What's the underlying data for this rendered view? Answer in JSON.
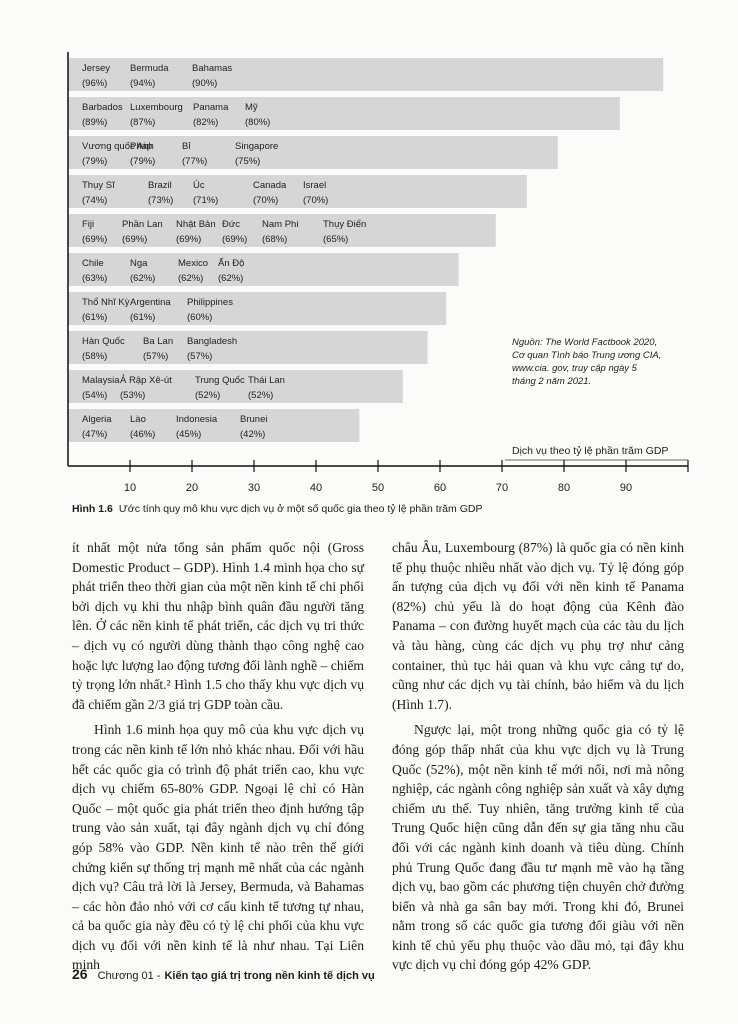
{
  "figure": {
    "xlim": [
      0,
      100
    ],
    "xticks": [
      10,
      20,
      30,
      40,
      50,
      60,
      70,
      80,
      90
    ],
    "bar_color": "#d6d6d6",
    "rows": [
      {
        "value": 96,
        "countries": [
          {
            "name": "Jersey",
            "pct": "(96%)"
          },
          {
            "name": "Bermuda",
            "pct": "(94%)"
          },
          {
            "name": "Bahamas",
            "pct": "(90%)"
          }
        ]
      },
      {
        "value": 89,
        "countries": [
          {
            "name": "Barbados",
            "pct": "(89%)"
          },
          {
            "name": "Luxembourg",
            "pct": "(87%)"
          },
          {
            "name": "Panama",
            "pct": "(82%)"
          },
          {
            "name": "Mỹ",
            "pct": "(80%)"
          }
        ]
      },
      {
        "value": 79,
        "countries": [
          {
            "name": "Vương quốc Anh",
            "pct": "(79%)"
          },
          {
            "name": "Pháp",
            "pct": "(79%)"
          },
          {
            "name": "Bỉ",
            "pct": "(77%)"
          },
          {
            "name": "Singapore",
            "pct": "(75%)"
          }
        ]
      },
      {
        "value": 74,
        "countries": [
          {
            "name": "Thụy Sĩ",
            "pct": "(74%)"
          },
          {
            "name": "Brazil",
            "pct": "(73%)"
          },
          {
            "name": "Úc",
            "pct": "(71%)"
          },
          {
            "name": "Canada",
            "pct": "(70%)"
          },
          {
            "name": "Israel",
            "pct": "(70%)"
          }
        ]
      },
      {
        "value": 69,
        "countries": [
          {
            "name": "Fiji",
            "pct": "(69%)"
          },
          {
            "name": "Phần Lan",
            "pct": "(69%)"
          },
          {
            "name": "Nhật Bản",
            "pct": "(69%)"
          },
          {
            "name": "Đức",
            "pct": "(69%)"
          },
          {
            "name": "Nam Phi",
            "pct": "(68%)"
          },
          {
            "name": "Thụy Điển",
            "pct": "(65%)"
          }
        ]
      },
      {
        "value": 63,
        "countries": [
          {
            "name": "Chile",
            "pct": "(63%)"
          },
          {
            "name": "Nga",
            "pct": "(62%)"
          },
          {
            "name": "Mexico",
            "pct": "(62%)"
          },
          {
            "name": "Ấn Độ",
            "pct": "(62%)"
          }
        ]
      },
      {
        "value": 61,
        "countries": [
          {
            "name": "Thổ Nhĩ Kỳ",
            "pct": "(61%)"
          },
          {
            "name": "Argentina",
            "pct": "(61%)"
          },
          {
            "name": "Philippines",
            "pct": "(60%)"
          }
        ]
      },
      {
        "value": 58,
        "countries": [
          {
            "name": "Hàn Quốc",
            "pct": "(58%)"
          },
          {
            "name": "Ba Lan",
            "pct": "(57%)"
          },
          {
            "name": "Bangladesh",
            "pct": "(57%)"
          }
        ]
      },
      {
        "value": 54,
        "countries": [
          {
            "name": "Malaysia",
            "pct": "(54%)"
          },
          {
            "name": "Ả Rập Xê-út",
            "pct": "(53%)"
          },
          {
            "name": "Trung Quốc",
            "pct": "(52%)"
          },
          {
            "name": "Thái Lan",
            "pct": "(52%)"
          }
        ]
      },
      {
        "value": 47,
        "countries": [
          {
            "name": "Algeria",
            "pct": "(47%)"
          },
          {
            "name": "Lào",
            "pct": "(46%)"
          },
          {
            "name": "Indonesia",
            "pct": "(45%)"
          },
          {
            "name": "Brunei",
            "pct": "(42%)"
          }
        ]
      }
    ],
    "source": [
      "Nguồn: The World Factbook 2020,",
      "Cơ quan Tình báo Trung ương CIA,",
      "www.cia. gov, truy cập ngày 5",
      "tháng 2 năm 2021."
    ],
    "axis_title": "Dịch vụ theo tỷ lệ phần trăm GDP",
    "caption": {
      "label": "Hình 1.6",
      "text": "Ước tính quy mô khu vực dịch vụ ở một số quốc gia theo tỷ lệ phần trăm GDP"
    }
  },
  "body": {
    "left": [
      "ít nhất một nửa tổng sản phẩm quốc nội (Gross Domestic Product – GDP). Hình 1.4 minh họa cho sự phát triển theo thời gian của một nền kinh tế chi phối bởi dịch vụ khi thu nhập bình quân đầu người tăng lên. Ở các nền kinh tế phát triển, các dịch vụ tri thức – dịch vụ có người dùng thành thạo công nghệ cao hoặc lực lượng lao động tương đối lành nghề – chiếm tỷ trọng lớn nhất.² Hình 1.5 cho thấy khu vực dịch vụ đã chiếm gần 2/3 giá trị GDP toàn cầu.",
      "Hình 1.6 minh họa quy mô của khu vực dịch vụ trong các nền kinh tế lớn nhỏ khác nhau. Đối với hầu hết các quốc gia có trình độ phát triển cao, khu vực dịch vụ chiếm 65-80% GDP. Ngoại lệ chỉ có Hàn Quốc – một quốc gia phát triển theo định hướng tập trung vào sản xuất, tại đây ngành dịch vụ chỉ đóng góp 58% vào GDP. Nền kinh tế nào trên thế giới chứng kiến sự thống trị mạnh mẽ nhất của các ngành dịch vụ? Câu trả lời là Jersey, Bermuda, và Bahamas – các hòn đảo nhỏ với cơ cấu kinh tế tương tự nhau, cả ba quốc gia này đều có tỷ lệ chi phối của khu vực dịch vụ đối với nền kinh tế là như nhau. Tại Liên minh"
    ],
    "right": [
      "châu Âu, Luxembourg (87%) là quốc gia có nền kinh tế phụ thuộc nhiều nhất vào dịch vụ. Tỷ lệ đóng góp ấn tượng của dịch vụ đối với nền kinh tế Panama (82%) chủ yếu là do hoạt động của Kênh đào Panama – con đường huyết mạch của các tàu du lịch và tàu hàng, cùng các dịch vụ phụ trợ như cảng container, thủ tục hải quan và khu vực cảng tự do, cũng như các dịch vụ tài chính, bảo hiểm và du lịch (Hình 1.7).",
      "Ngược lại, một trong những quốc gia có tỷ lệ đóng góp thấp nhất của khu vực dịch vụ là Trung Quốc (52%), một nền kinh tế mới nổi, nơi mà nông nghiệp, các ngành công nghiệp sản xuất và xây dựng chiếm ưu thế. Tuy nhiên, tăng trưởng kinh tế của Trung Quốc hiện cũng dẫn đến sự gia tăng nhu cầu đối với các ngành kinh doanh và tiêu dùng. Chính phủ Trung Quốc đang đầu tư mạnh mẽ vào hạ tầng dịch vụ, bao gồm các phương tiện chuyên chở đường biển và nhà ga sân bay mới. Trong khi đó, Brunei nằm trong số các quốc gia tương đối giàu với nền kinh tế chủ yếu phụ thuộc vào dầu mỏ, tại đây khu vực dịch vụ chỉ đóng góp 42% GDP."
    ]
  },
  "footer": {
    "page": "26",
    "chapter": "Chương 01 -",
    "title": "Kiến tạo giá trị trong nền kinh tế dịch vụ"
  }
}
